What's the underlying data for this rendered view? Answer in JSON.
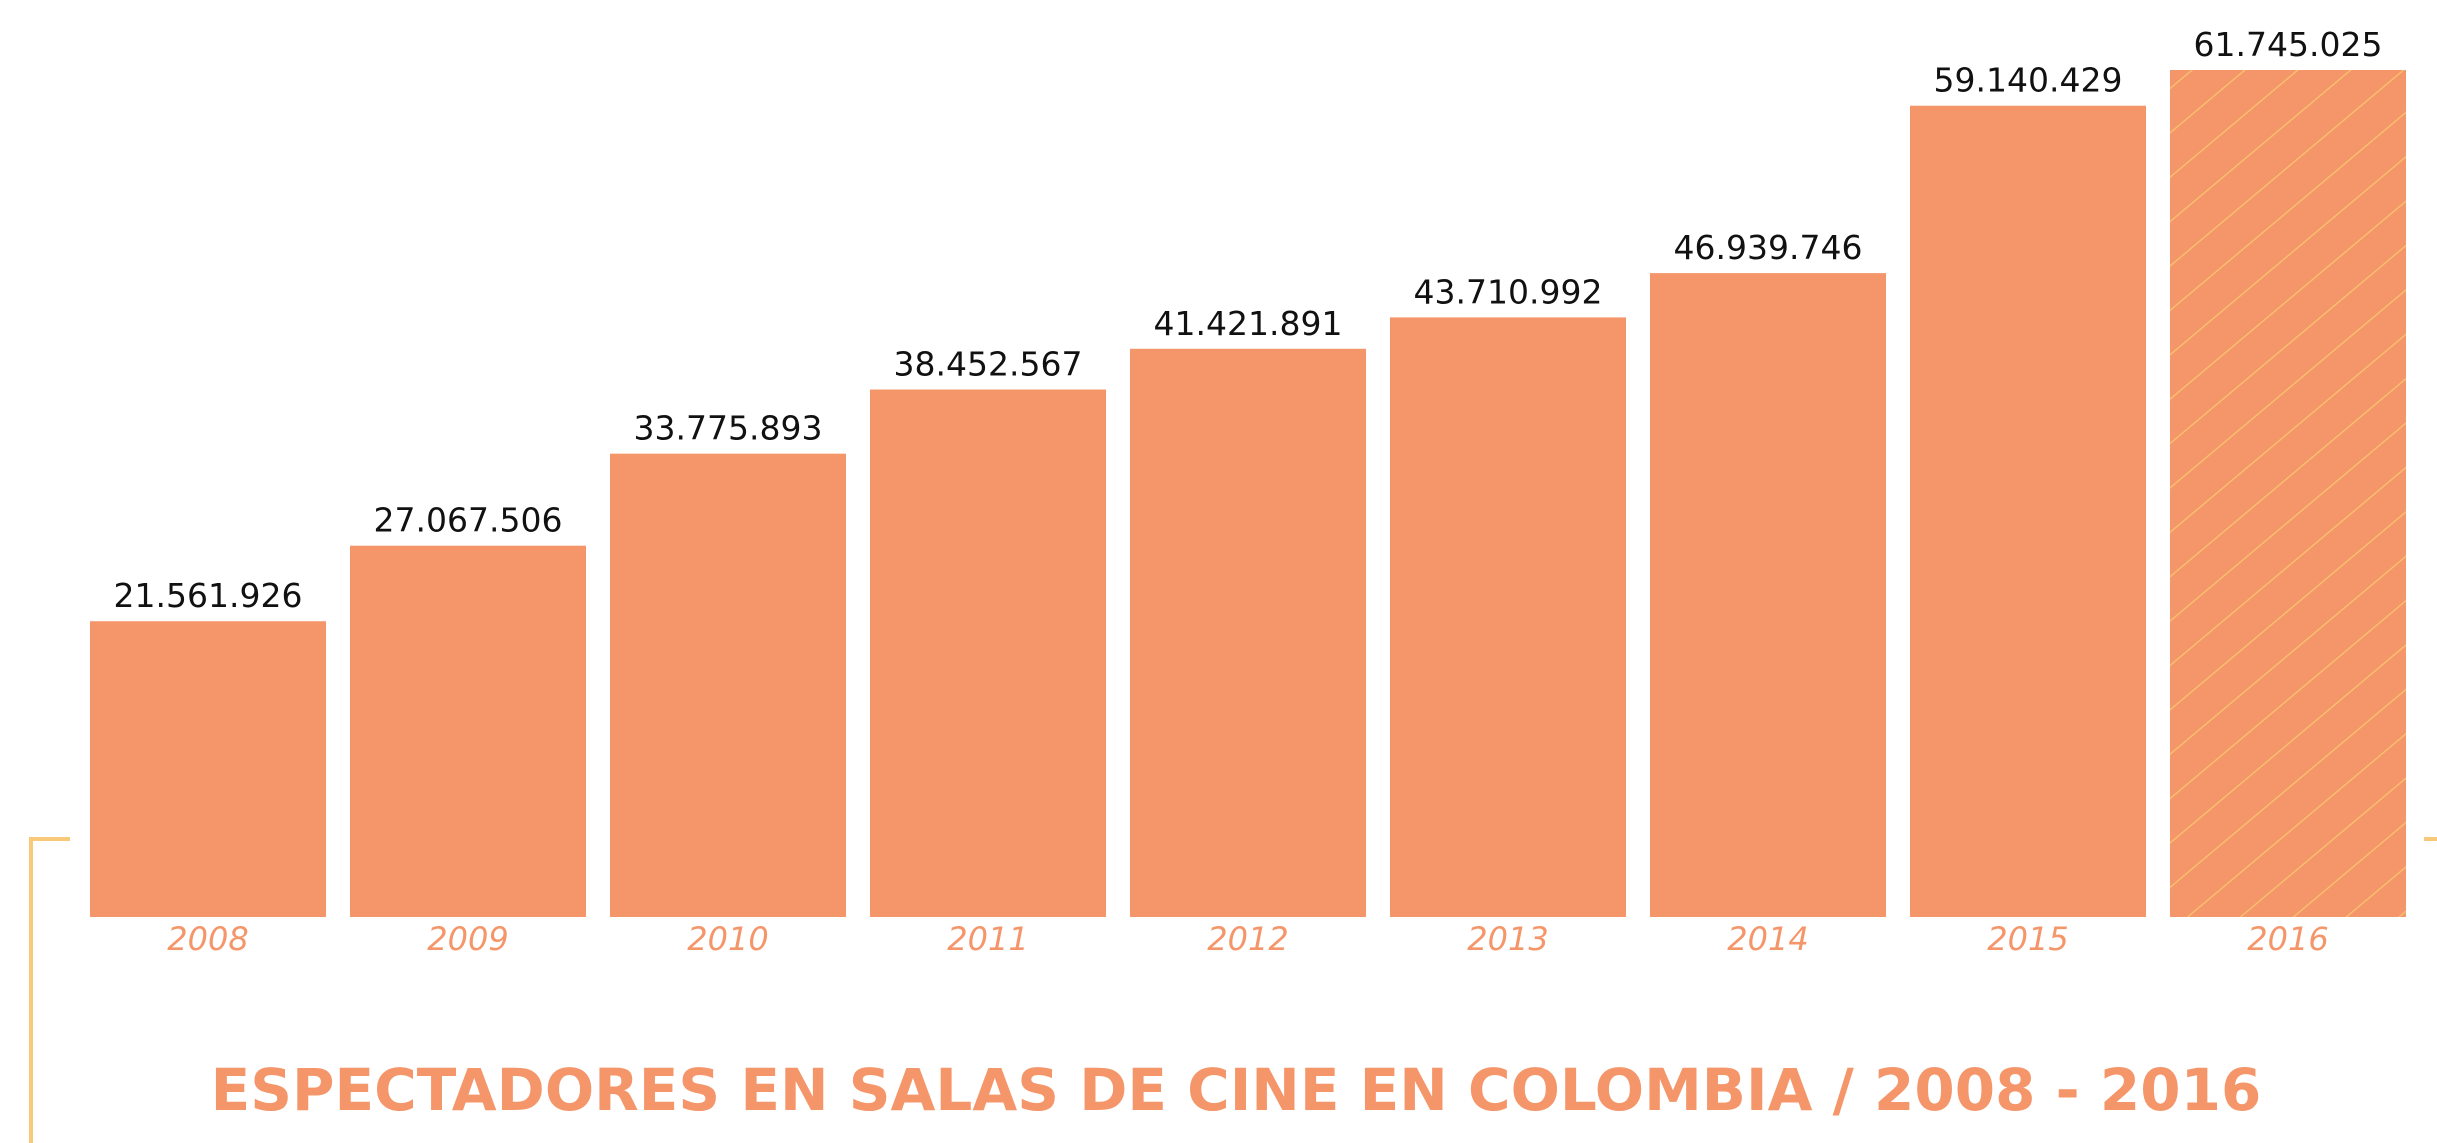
{
  "chart_data": {
    "type": "bar",
    "title": "ESPECTADORES EN SALAS DE CINE EN COLOMBIA / 2008 - 2016",
    "categories": [
      "2008",
      "2009",
      "2010",
      "2011",
      "2012",
      "2013",
      "2014",
      "2015",
      "2016"
    ],
    "values": [
      21561926,
      27067506,
      33775893,
      38452567,
      41421891,
      43710992,
      46939746,
      59140429,
      61745025
    ],
    "value_labels": [
      "21.561.926",
      "27.067.506",
      "33.775.893",
      "38.452.567",
      "41.421.891",
      "43.710.992",
      "46.939.746",
      "59.140.429",
      "61.745.025"
    ],
    "color": "#f5966a",
    "hatched": [
      false,
      false,
      false,
      false,
      false,
      false,
      false,
      false,
      true
    ],
    "hatch_color": "#f9c46e"
  }
}
